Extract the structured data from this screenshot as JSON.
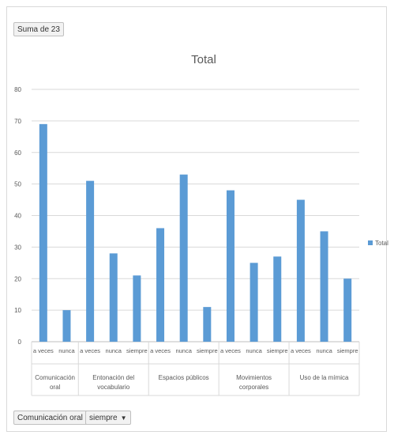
{
  "value_field": "Suma de 23",
  "filters": [
    {
      "label": "Comunicación oral",
      "icon": "dropdown-arrow-icon"
    },
    {
      "label": "siempre",
      "icon": "dropdown-arrow-icon"
    }
  ],
  "chart_data": {
    "type": "bar",
    "title": "Total",
    "ylim": [
      0,
      80
    ],
    "yticks": [
      0,
      10,
      20,
      30,
      40,
      50,
      60,
      70,
      80
    ],
    "grid": true,
    "legend_position": "right",
    "bar_color": "#5b9bd5",
    "groups": [
      {
        "name": "Comunicación oral",
        "categories": [
          "a veces",
          "nunca"
        ],
        "values": [
          69,
          10
        ]
      },
      {
        "name": "Entonación del vocabulario",
        "categories": [
          "a veces",
          "nunca",
          "siempre"
        ],
        "values": [
          51,
          28,
          21
        ]
      },
      {
        "name": "Espacios públicos",
        "categories": [
          "a veces",
          "nunca",
          "siempre"
        ],
        "values": [
          36,
          53,
          11
        ]
      },
      {
        "name": "Movimientos corporales",
        "categories": [
          "a veces",
          "nunca",
          "siempre"
        ],
        "values": [
          48,
          25,
          27
        ]
      },
      {
        "name": "Uso de la mímica",
        "categories": [
          "a veces",
          "nunca",
          "siempre"
        ],
        "values": [
          45,
          35,
          20
        ]
      }
    ],
    "series": [
      {
        "name": "Total"
      }
    ]
  }
}
